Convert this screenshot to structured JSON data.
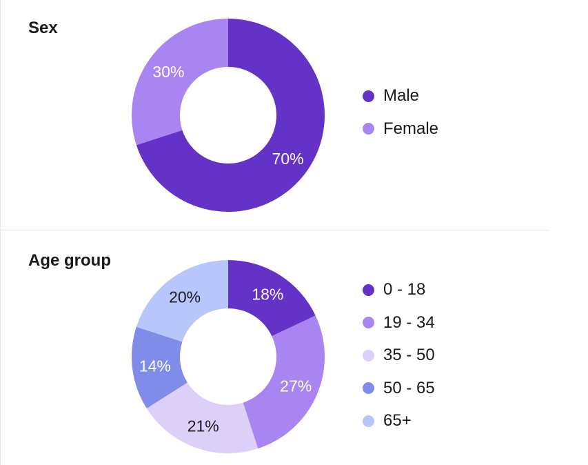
{
  "charts": [
    {
      "title": "Sex",
      "chart_data": {
        "type": "pie",
        "variant": "donut",
        "labels": [
          "Male",
          "Female"
        ],
        "values": [
          70,
          30
        ],
        "value_labels": [
          "70%",
          "30%"
        ],
        "colors": [
          "#6532c8",
          "#a985f2"
        ],
        "label_colors": [
          "#ffffff",
          "#ffffff"
        ],
        "start_angle_deg": 0,
        "direction": "clockwise",
        "legend_position": "right"
      }
    },
    {
      "title": "Age group",
      "chart_data": {
        "type": "pie",
        "variant": "donut",
        "labels": [
          "0 - 18",
          "19 - 34",
          "35 - 50",
          "50 - 65",
          "65+"
        ],
        "values": [
          18,
          27,
          21,
          14,
          20
        ],
        "value_labels": [
          "18%",
          "27%",
          "21%",
          "14%",
          "20%"
        ],
        "colors": [
          "#6532c8",
          "#a985f2",
          "#dcd0f8",
          "#7f8cea",
          "#b7c6fb"
        ],
        "label_colors": [
          "#ffffff",
          "#ffffff",
          "#1a1a1a",
          "#ffffff",
          "#1a1a1a"
        ],
        "start_angle_deg": 0,
        "direction": "clockwise",
        "legend_position": "right"
      }
    }
  ]
}
